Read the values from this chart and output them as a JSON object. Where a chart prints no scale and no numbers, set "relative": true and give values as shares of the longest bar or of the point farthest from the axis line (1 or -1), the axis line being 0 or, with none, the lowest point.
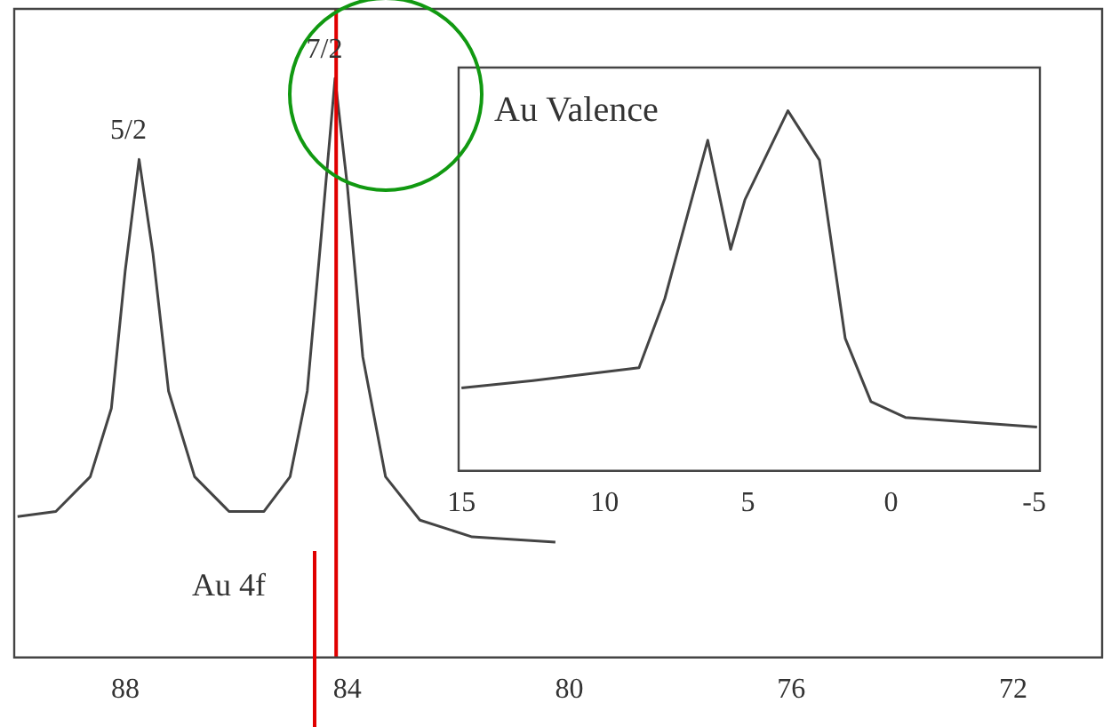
{
  "chart_data": [
    {
      "type": "line",
      "relative": true,
      "color": "#444444",
      "marker": "none",
      "grid": false,
      "legend": false,
      "x": [
        89.94,
        89.25,
        88.63,
        88.25,
        88.0,
        87.75,
        87.5,
        87.22,
        86.75,
        86.13,
        85.5,
        85.03,
        84.72,
        84.47,
        84.22,
        84.0,
        83.72,
        83.31,
        82.69,
        81.75,
        80.25
      ],
      "values": [
        0.243,
        0.252,
        0.312,
        0.43,
        0.668,
        0.86,
        0.697,
        0.46,
        0.312,
        0.252,
        0.252,
        0.312,
        0.46,
        0.727,
        1,
        0.816,
        0.519,
        0.312,
        0.237,
        0.208,
        0.199
      ],
      "xlim": [
        90,
        70.4
      ],
      "xticks": [
        88,
        84,
        80,
        76,
        72
      ],
      "ref_lines": [
        {
          "axis": "x",
          "value": 84.2,
          "color": "#e00000"
        }
      ],
      "annotations": [
        {
          "text": "5/2",
          "x": 87.75,
          "y": 0.86
        },
        {
          "text": "7/2",
          "x": 84.22,
          "y": 1
        },
        "Au 4f"
      ]
    },
    {
      "type": "line",
      "relative": true,
      "color": "#444444",
      "marker": "none",
      "grid": false,
      "legend": false,
      "x": [
        15,
        12.5,
        8.8,
        7.9,
        6.4,
        5.6,
        5.1,
        3.6,
        2.5,
        1.6,
        0.7,
        -0.5,
        -5.1
      ],
      "values": [
        0.23,
        0.25,
        0.286,
        0.478,
        0.918,
        0.615,
        0.753,
        1,
        0.863,
        0.368,
        0.192,
        0.148,
        0.121
      ],
      "xlim": [
        15.1,
        -5.2
      ],
      "xticks": [
        15,
        10,
        5,
        0,
        -5
      ],
      "annotations": [
        "Au Valence"
      ]
    }
  ]
}
